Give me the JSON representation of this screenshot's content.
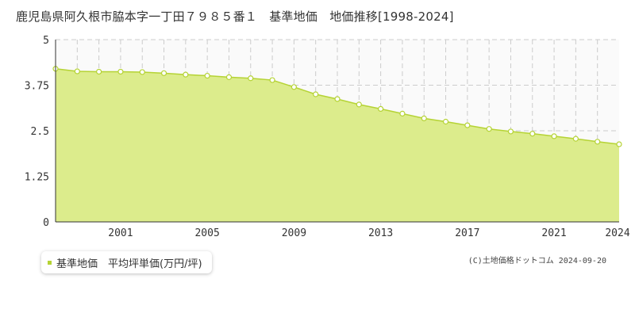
{
  "title": "鹿児島県阿久根市脇本字一丁田７９８５番１　基準地価　地価推移[1998-2024]",
  "legend": {
    "label": "基準地価　平均坪単価(万円/坪)"
  },
  "credit": "(C)土地価格ドットコム 2024-09-20",
  "colors": {
    "fill": "#dcec8c",
    "line": "#b5d334",
    "marker_fill": "#ffffff",
    "grid": "#cccccc",
    "future_band": "#fafafa"
  },
  "chart_data": {
    "type": "area",
    "title": "",
    "xlabel": "",
    "ylabel": "",
    "xlim": [
      1998,
      2024
    ],
    "ylim": [
      0,
      5
    ],
    "y_ticks": [
      "0",
      "1.25",
      "2.5",
      "3.75",
      "5"
    ],
    "x_ticks": [
      "2001",
      "2005",
      "2009",
      "2013",
      "2017",
      "2021",
      "2024"
    ],
    "grid": true,
    "legend_position": "bottom-left",
    "series": [
      {
        "name": "基準地価　平均坪単価(万円/坪)",
        "x": [
          1998,
          1999,
          2000,
          2001,
          2002,
          2003,
          2004,
          2005,
          2006,
          2007,
          2008,
          2009,
          2010,
          2011,
          2012,
          2013,
          2014,
          2015,
          2016,
          2017,
          2018,
          2019,
          2020,
          2021,
          2022,
          2023,
          2024
        ],
        "y": [
          4.2,
          4.13,
          4.12,
          4.12,
          4.11,
          4.08,
          4.04,
          4.01,
          3.97,
          3.94,
          3.89,
          3.7,
          3.5,
          3.37,
          3.22,
          3.1,
          2.97,
          2.84,
          2.75,
          2.65,
          2.55,
          2.48,
          2.42,
          2.35,
          2.28,
          2.2,
          2.13
        ]
      }
    ]
  }
}
